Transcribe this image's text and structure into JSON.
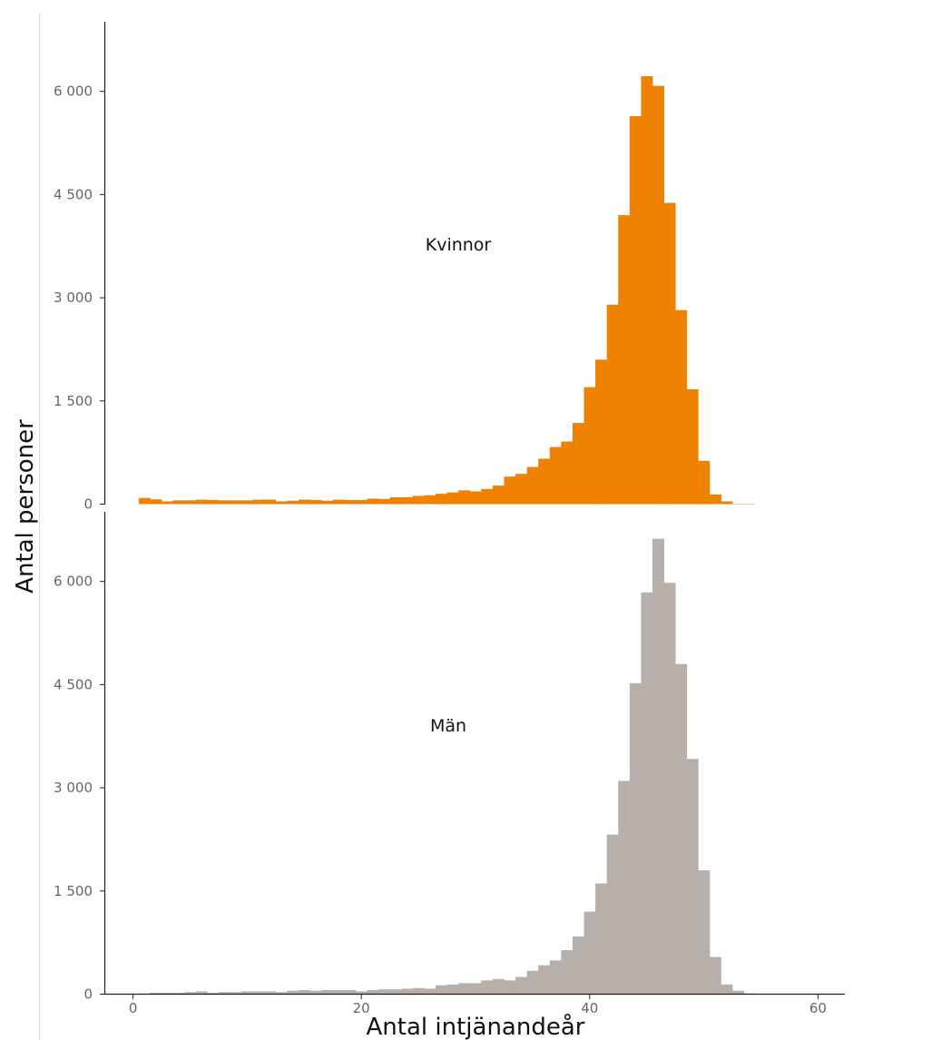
{
  "chart_data": {
    "type": "histogram",
    "xlabel": "Antal intjänandeår",
    "ylabel": "Antal personer",
    "x_ticks": [
      "0",
      "20",
      "40",
      "60"
    ],
    "xlim": [
      -2.5,
      62.5
    ],
    "bin_start": 0.5,
    "bin_width": 1,
    "panels": [
      {
        "name": "Kvinnor",
        "color": "#EF8200",
        "ylim": [
          0,
          7000
        ],
        "y_ticks": [
          "0",
          "1 500",
          "3 000",
          "4 500",
          "6 000"
        ],
        "y_tick_values": [
          0,
          1500,
          3000,
          4500,
          6000
        ],
        "values": [
          90,
          70,
          40,
          55,
          55,
          65,
          60,
          55,
          55,
          55,
          65,
          65,
          40,
          50,
          65,
          60,
          50,
          65,
          60,
          60,
          80,
          75,
          100,
          100,
          120,
          130,
          150,
          170,
          200,
          185,
          220,
          270,
          400,
          440,
          540,
          660,
          830,
          910,
          1180,
          1700,
          2100,
          2900,
          4200,
          5640,
          6220,
          6080,
          4380,
          2820,
          1670,
          630,
          140,
          40,
          5,
          5
        ]
      },
      {
        "name": "Män",
        "color": "#B7AFAA",
        "ylim": [
          0,
          7000
        ],
        "y_ticks": [
          "0",
          "1 500",
          "3 000",
          "4 500",
          "6 000"
        ],
        "y_tick_values": [
          0,
          1500,
          3000,
          4500,
          6000
        ],
        "values": [
          10,
          20,
          20,
          20,
          30,
          40,
          20,
          30,
          30,
          40,
          40,
          40,
          30,
          50,
          60,
          50,
          60,
          60,
          60,
          40,
          60,
          70,
          70,
          80,
          90,
          80,
          130,
          140,
          160,
          160,
          200,
          220,
          200,
          250,
          340,
          420,
          490,
          640,
          840,
          1200,
          1610,
          2320,
          3100,
          4520,
          5840,
          6620,
          5980,
          4800,
          3420,
          1800,
          540,
          140,
          50,
          10
        ]
      }
    ]
  }
}
